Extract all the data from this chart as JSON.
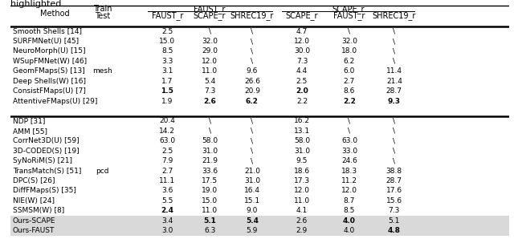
{
  "title_text": "highlighted.",
  "col_header_row2": [
    "FAUST_r",
    "SCAPE_r",
    "SHREC19_r",
    "SCAPE_r",
    "FAUST_r",
    "SHREC19_r"
  ],
  "rows": [
    [
      "Smooth Shells [14]",
      "",
      "2.5",
      "\\",
      "\\",
      "4.7",
      "\\",
      "\\"
    ],
    [
      "SURFMNet(U) [45]",
      "",
      "15.0",
      "32.0",
      "\\",
      "12.0",
      "32.0",
      "\\"
    ],
    [
      "NeuroMorph(U) [15]",
      "",
      "8.5",
      "29.0",
      "\\",
      "30.0",
      "18.0",
      "\\"
    ],
    [
      "WSupFMNet(W) [46]",
      "",
      "3.3",
      "12.0",
      "\\",
      "7.3",
      "6.2",
      "\\"
    ],
    [
      "GeomFMaps(S) [13]",
      "mesh",
      "3.1",
      "11.0",
      "9.6",
      "4.4",
      "6.0",
      "11.4"
    ],
    [
      "Deep Shells(W) [16]",
      "",
      "1.7",
      "5.4",
      "26.6",
      "2.5",
      "2.7",
      "21.4"
    ],
    [
      "ConsistFMaps(U) [7]",
      "",
      "1.5",
      "7.3",
      "20.9",
      "2.0",
      "8.6",
      "28.7"
    ],
    [
      "AttentiveFMaps(U) [29]",
      "",
      "1.9",
      "2.6",
      "6.2",
      "2.2",
      "2.2",
      "9.3"
    ]
  ],
  "rows_bold": [
    [
      false,
      false,
      false,
      false,
      false,
      false,
      false,
      false
    ],
    [
      false,
      false,
      false,
      false,
      false,
      false,
      false,
      false
    ],
    [
      false,
      false,
      false,
      false,
      false,
      false,
      false,
      false
    ],
    [
      false,
      false,
      false,
      false,
      false,
      false,
      false,
      false
    ],
    [
      false,
      false,
      false,
      false,
      false,
      false,
      false,
      false
    ],
    [
      false,
      false,
      false,
      false,
      false,
      false,
      false,
      false
    ],
    [
      false,
      false,
      true,
      false,
      false,
      true,
      false,
      false
    ],
    [
      false,
      false,
      false,
      true,
      true,
      false,
      true,
      true
    ]
  ],
  "rows2": [
    [
      "NDP [31]",
      "",
      "20.4",
      "\\",
      "\\",
      "16.2",
      "\\",
      "\\"
    ],
    [
      "AMM [55]",
      "",
      "14.2",
      "\\",
      "\\",
      "13.1",
      "\\",
      "\\"
    ],
    [
      "CorrNet3D(U) [59]",
      "",
      "63.0",
      "58.0",
      "\\",
      "58.0",
      "63.0",
      "\\"
    ],
    [
      "3D-CODED(S) [19]",
      "",
      "2.5",
      "31.0",
      "\\",
      "31.0",
      "33.0",
      "\\"
    ],
    [
      "SyNoRiM(S) [21]",
      "",
      "7.9",
      "21.9",
      "\\",
      "9.5",
      "24.6",
      "\\"
    ],
    [
      "TransMatch(S) [51]",
      "pcd",
      "2.7",
      "33.6",
      "21.0",
      "18.6",
      "18.3",
      "38.8"
    ],
    [
      "DPC(S) [26]",
      "",
      "11.1",
      "17.5",
      "31.0",
      "17.3",
      "11.2",
      "28.7"
    ],
    [
      "DiffFMaps(S) [35]",
      "",
      "3.6",
      "19.0",
      "16.4",
      "12.0",
      "12.0",
      "17.6"
    ],
    [
      "NIE(W) [24]",
      "",
      "5.5",
      "15.0",
      "15.1",
      "11.0",
      "8.7",
      "15.6"
    ],
    [
      "SSMSM(W) [8]",
      "",
      "2.4",
      "11.0",
      "9.0",
      "4.1",
      "8.5",
      "7.3"
    ],
    [
      "Ours-SCAPE",
      "",
      "3.4",
      "5.1",
      "5.4",
      "2.6",
      "4.0",
      "5.1"
    ],
    [
      "Ours-FAUST",
      "",
      "3.0",
      "6.3",
      "5.9",
      "2.9",
      "4.0",
      "4.8"
    ]
  ],
  "rows2_bold": [
    [
      false,
      false,
      false,
      false,
      false,
      false,
      false,
      false
    ],
    [
      false,
      false,
      false,
      false,
      false,
      false,
      false,
      false
    ],
    [
      false,
      false,
      false,
      false,
      false,
      false,
      false,
      false
    ],
    [
      false,
      false,
      false,
      false,
      false,
      false,
      false,
      false
    ],
    [
      false,
      false,
      false,
      false,
      false,
      false,
      false,
      false
    ],
    [
      false,
      false,
      false,
      false,
      false,
      false,
      false,
      false
    ],
    [
      false,
      false,
      false,
      false,
      false,
      false,
      false,
      false
    ],
    [
      false,
      false,
      false,
      false,
      false,
      false,
      false,
      false
    ],
    [
      false,
      false,
      false,
      false,
      false,
      false,
      false,
      false
    ],
    [
      false,
      false,
      true,
      false,
      false,
      false,
      false,
      false
    ],
    [
      false,
      false,
      false,
      true,
      true,
      false,
      true,
      false
    ],
    [
      false,
      false,
      false,
      false,
      false,
      false,
      false,
      true
    ]
  ],
  "ours_rows": [
    10,
    11
  ],
  "highlight_color": "#d9d9d9",
  "bg_color": "#ffffff",
  "font_size": 6.5,
  "header_font_size": 7.0
}
